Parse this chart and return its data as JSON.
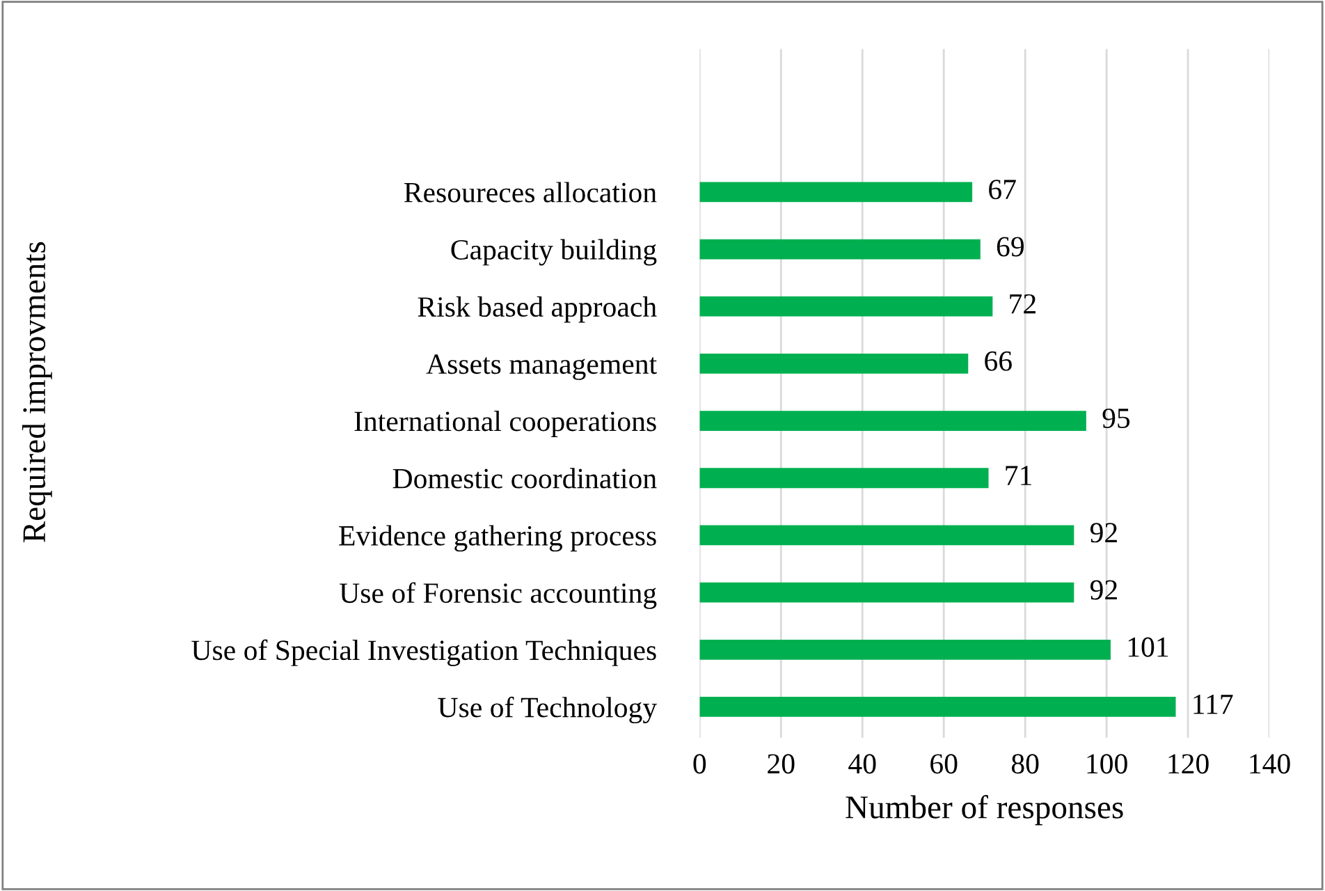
{
  "chart_data": {
    "type": "bar",
    "orientation": "horizontal",
    "xlabel": "Number of responses",
    "ylabel": "Required improvments",
    "categories": [
      "Resoureces allocation",
      "Capacity building",
      "Risk based approach",
      "Assets management",
      "International cooperations",
      "Domestic coordination",
      "Evidence gathering process",
      "Use of Forensic accounting",
      "Use of Special Investigation Techniques",
      "Use of Technology"
    ],
    "values": [
      67,
      69,
      72,
      66,
      95,
      71,
      92,
      92,
      101,
      117
    ],
    "color": "#00b050",
    "data_labels": true,
    "xlim": [
      0,
      140
    ],
    "xticks": [
      0,
      20,
      40,
      60,
      80,
      100,
      120,
      140
    ],
    "grid": "x",
    "legend": false
  }
}
